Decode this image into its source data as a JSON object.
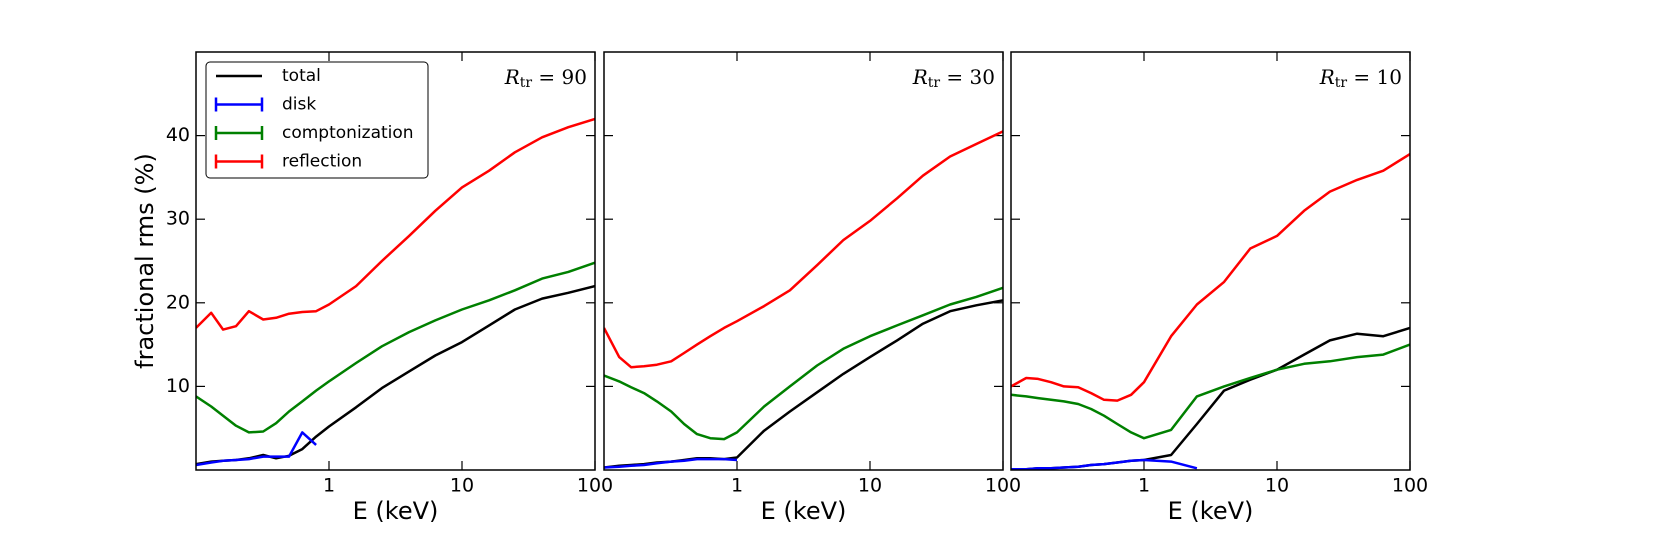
{
  "chart_data": [
    {
      "type": "line",
      "xlabel": "E (keV)",
      "ylabel": "fractional rms (%)",
      "annotation": {
        "base": "R",
        "sub": "tr",
        "rest": " = 90"
      },
      "x": [
        0.1,
        0.13,
        0.16,
        0.2,
        0.25,
        0.32,
        0.4,
        0.5,
        0.63,
        0.8,
        1,
        1.6,
        2.5,
        4,
        6.3,
        10,
        16,
        25,
        40,
        63,
        100
      ],
      "series": [
        {
          "name": "total",
          "color": "#000000",
          "values": [
            0.7,
            1.0,
            1.1,
            1.2,
            1.4,
            1.8,
            1.4,
            1.7,
            2.5,
            4.0,
            5.2,
            7.5,
            9.8,
            11.8,
            13.7,
            15.3,
            17.3,
            19.2,
            20.5,
            21.2,
            22.0
          ]
        },
        {
          "name": "disk",
          "color": "#0000ff",
          "values": [
            0.6,
            0.9,
            1.1,
            1.2,
            1.3,
            1.6,
            1.6,
            1.6,
            4.5,
            3.0,
            null,
            null,
            null,
            null,
            null,
            null,
            null,
            null,
            null,
            null,
            null
          ]
        },
        {
          "name": "comptonization",
          "color": "#008000",
          "values": [
            8.8,
            7.6,
            6.5,
            5.3,
            4.5,
            4.6,
            5.6,
            7.0,
            8.2,
            9.5,
            10.6,
            12.8,
            14.8,
            16.5,
            17.9,
            19.2,
            20.3,
            21.5,
            22.9,
            23.7,
            24.8
          ]
        },
        {
          "name": "reflection",
          "color": "#ff0000",
          "values": [
            17.0,
            18.8,
            16.8,
            17.2,
            19.0,
            18.0,
            18.2,
            18.7,
            18.9,
            19.0,
            19.8,
            22.0,
            25.0,
            28.0,
            31.0,
            33.8,
            35.8,
            38.0,
            39.8,
            41.0,
            42.0
          ]
        }
      ],
      "xlim": [
        0.1,
        100
      ],
      "xticks": [
        1,
        10,
        100
      ],
      "xscale": "log",
      "ylim": [
        0,
        50
      ],
      "yticks": [
        10,
        20,
        30,
        40
      ],
      "show_ytick_labels": true,
      "legend": "upper left"
    },
    {
      "type": "line",
      "xlabel": "E (keV)",
      "annotation": {
        "base": "R",
        "sub": "tr",
        "rest": " = 30"
      },
      "x": [
        0.1,
        0.13,
        0.16,
        0.2,
        0.25,
        0.32,
        0.4,
        0.5,
        0.63,
        0.8,
        1,
        1.6,
        2.5,
        4,
        6.3,
        10,
        16,
        25,
        40,
        63,
        100
      ],
      "series": [
        {
          "name": "total",
          "color": "#000000",
          "values": [
            0.3,
            0.5,
            0.6,
            0.7,
            0.9,
            1.0,
            1.2,
            1.4,
            1.4,
            1.3,
            1.5,
            4.7,
            7.0,
            9.3,
            11.5,
            13.5,
            15.5,
            17.5,
            19.0,
            19.7,
            20.3
          ]
        },
        {
          "name": "disk",
          "color": "#0000ff",
          "values": [
            0.3,
            0.4,
            0.5,
            0.6,
            0.8,
            1.0,
            1.1,
            1.3,
            1.3,
            1.3,
            1.2,
            null,
            null,
            null,
            null,
            null,
            null,
            null,
            null,
            null,
            null
          ]
        },
        {
          "name": "comptonization",
          "color": "#008000",
          "values": [
            11.3,
            10.6,
            9.9,
            9.2,
            8.2,
            7.0,
            5.5,
            4.3,
            3.8,
            3.7,
            4.5,
            7.6,
            10.0,
            12.5,
            14.5,
            16.0,
            17.3,
            18.5,
            19.8,
            20.7,
            21.8
          ]
        },
        {
          "name": "reflection",
          "color": "#ff0000",
          "values": [
            17.0,
            13.5,
            12.3,
            12.4,
            12.6,
            13.0,
            14.0,
            15.0,
            16.0,
            17.0,
            17.8,
            19.6,
            21.5,
            24.5,
            27.5,
            29.8,
            32.5,
            35.2,
            37.5,
            39.0,
            40.5
          ]
        }
      ],
      "xlim": [
        0.1,
        100
      ],
      "xticks": [
        1,
        10,
        100
      ],
      "xscale": "log",
      "ylim": [
        0,
        50
      ],
      "yticks": [
        10,
        20,
        30,
        40
      ],
      "show_ytick_labels": false
    },
    {
      "type": "line",
      "xlabel": "E (keV)",
      "annotation": {
        "base": "R",
        "sub": "tr",
        "rest": " = 10"
      },
      "x": [
        0.1,
        0.13,
        0.16,
        0.2,
        0.25,
        0.32,
        0.4,
        0.5,
        0.63,
        0.8,
        1,
        1.6,
        2.5,
        4,
        6.3,
        10,
        16,
        25,
        40,
        63,
        100
      ],
      "series": [
        {
          "name": "total",
          "color": "#000000",
          "values": [
            0.1,
            0.1,
            0.2,
            0.2,
            0.3,
            0.4,
            0.6,
            0.7,
            0.9,
            1.1,
            1.2,
            1.8,
            5.5,
            9.5,
            10.8,
            12.0,
            13.8,
            15.5,
            16.3,
            16.0,
            17.0
          ]
        },
        {
          "name": "disk",
          "color": "#0000ff",
          "values": [
            0.1,
            0.1,
            0.2,
            0.2,
            0.3,
            0.4,
            0.6,
            0.7,
            0.9,
            1.1,
            1.2,
            1.0,
            0.2,
            null,
            null,
            null,
            null,
            null,
            null,
            null,
            null
          ]
        },
        {
          "name": "comptonization",
          "color": "#008000",
          "values": [
            9.0,
            8.8,
            8.6,
            8.4,
            8.2,
            7.9,
            7.3,
            6.5,
            5.5,
            4.5,
            3.8,
            4.8,
            8.8,
            10.0,
            11.0,
            12.0,
            12.7,
            13.0,
            13.5,
            13.8,
            15.0
          ]
        },
        {
          "name": "reflection",
          "color": "#ff0000",
          "values": [
            10.0,
            11.0,
            10.9,
            10.5,
            10.0,
            9.9,
            9.2,
            8.4,
            8.3,
            9.0,
            10.5,
            16.0,
            19.8,
            22.5,
            26.5,
            28.0,
            31.0,
            33.3,
            34.7,
            35.8,
            37.8
          ]
        }
      ],
      "xlim": [
        0.1,
        100
      ],
      "xticks": [
        1,
        10,
        100
      ],
      "xscale": "log",
      "ylim": [
        0,
        50
      ],
      "yticks": [
        10,
        20,
        30,
        40
      ],
      "show_ytick_labels": false
    }
  ]
}
